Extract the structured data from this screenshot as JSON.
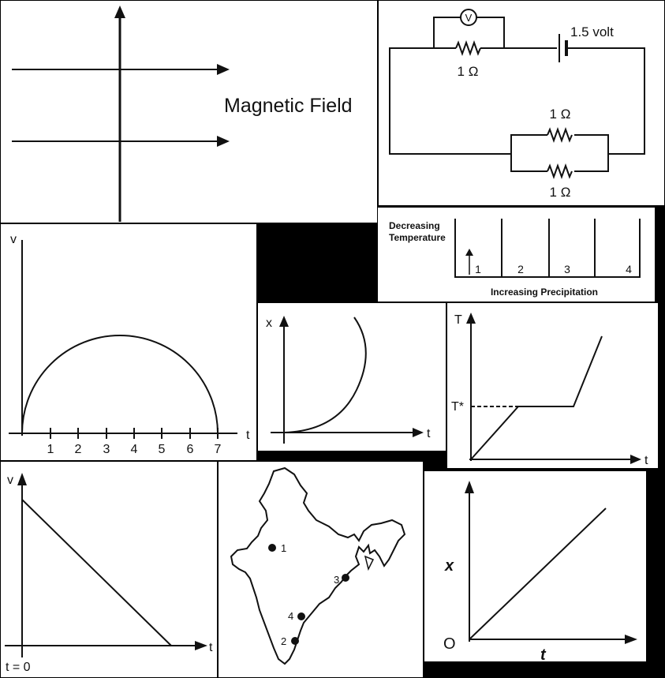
{
  "colors": {
    "background": "#000000",
    "panel": "#ffffff",
    "ink": "#111111"
  },
  "magnetic_field": {
    "label": "Magnetic Field"
  },
  "circuit": {
    "meter_symbol": "V",
    "battery_label": "1.5 volt",
    "r_series_label": "1 Ω",
    "r_parallel_top_label": "1 Ω",
    "r_parallel_bottom_label": "1 Ω"
  },
  "climate": {
    "y_label_line1": "Decreasing",
    "y_label_line2": "Temperature",
    "x_label": "Increasing Precipitation",
    "zones": [
      "1",
      "2",
      "3",
      "4"
    ]
  },
  "vt_semicircle": {
    "y_axis_label": "v",
    "x_axis_label": "t",
    "ticks": [
      "1",
      "2",
      "3",
      "4",
      "5",
      "6",
      "7"
    ]
  },
  "xt_curve": {
    "y_axis_label": "x",
    "x_axis_label": "t"
  },
  "tt_heating": {
    "y_axis_label": "T",
    "x_axis_label": "t",
    "level_label": "T*"
  },
  "vt_linear": {
    "y_axis_label": "v",
    "x_axis_label": "t",
    "origin_label": "t = 0"
  },
  "india_map": {
    "points": [
      "1",
      "2",
      "3",
      "4"
    ]
  },
  "xt_linear": {
    "y_axis_label": "x",
    "x_axis_label": "t",
    "origin_label": "O"
  }
}
